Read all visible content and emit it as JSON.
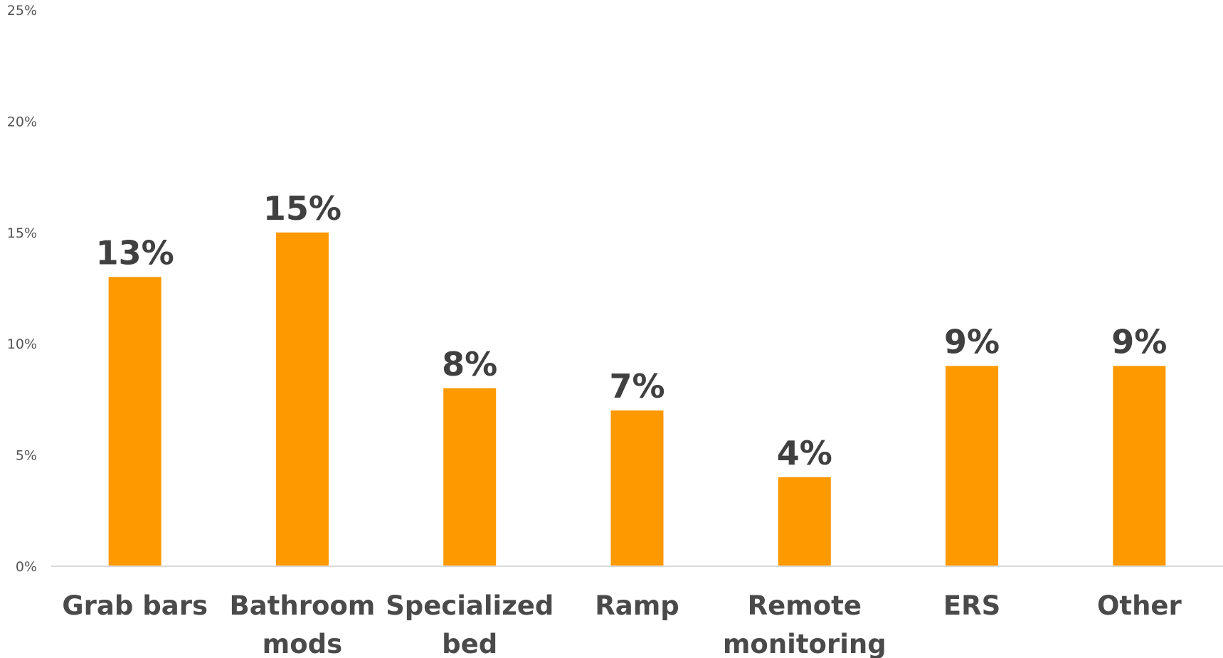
{
  "chart_data": {
    "type": "bar",
    "categories": [
      [
        "Grab bars"
      ],
      [
        "Bathroom",
        "mods"
      ],
      [
        "Specialized",
        "bed"
      ],
      [
        "Ramp"
      ],
      [
        "Remote",
        "monitoring"
      ],
      [
        "ERS"
      ],
      [
        "Other"
      ]
    ],
    "values": [
      13,
      15,
      8,
      7,
      4,
      9,
      9
    ],
    "data_labels": [
      "13%",
      "15%",
      "8%",
      "7%",
      "4%",
      "9%",
      "9%"
    ],
    "yticks": [
      0,
      5,
      10,
      15,
      20,
      25
    ],
    "ytick_labels": [
      "0%",
      "5%",
      "10%",
      "15%",
      "20%",
      "25%"
    ],
    "ylim": [
      0,
      25
    ],
    "title": "",
    "xlabel": "",
    "ylabel": "",
    "grid": false,
    "legend": "none",
    "colors": {
      "bar": "#FF9900",
      "axis": "#D9D9D9",
      "tick_text": "#555555",
      "data_label_text": "#404040",
      "category_text": "#4A4A4A"
    }
  }
}
